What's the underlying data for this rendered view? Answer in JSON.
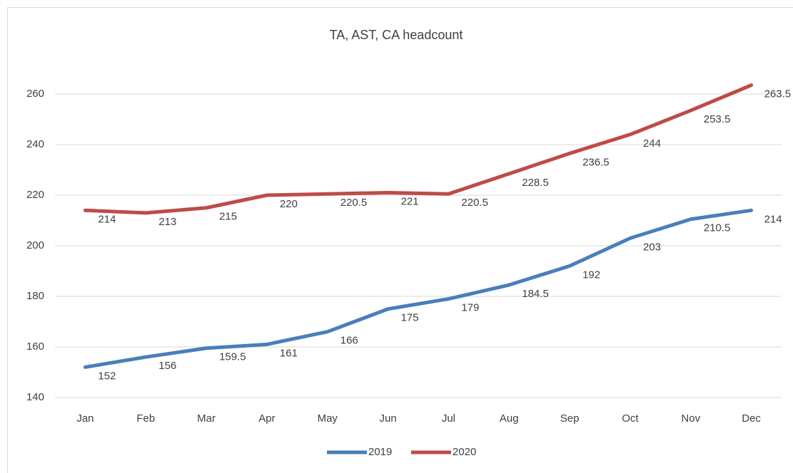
{
  "chart_data": {
    "type": "line",
    "title": "TA, AST, CA headcount",
    "categories": [
      "Jan",
      "Feb",
      "Mar",
      "Apr",
      "May",
      "Jun",
      "Jul",
      "Aug",
      "Sep",
      "Oct",
      "Nov",
      "Dec"
    ],
    "series": [
      {
        "name": "2019",
        "color": "#4a7ebb",
        "values": [
          152,
          156,
          159.5,
          161,
          166,
          175,
          179,
          184.5,
          192,
          203,
          210.5,
          214
        ]
      },
      {
        "name": "2020",
        "color": "#be4b48",
        "values": [
          214,
          213,
          215,
          220,
          220.5,
          221,
          220.5,
          228.5,
          236.5,
          244,
          253.5,
          263.5
        ]
      }
    ],
    "ylim": [
      140,
      270
    ],
    "yticks": [
      140,
      160,
      180,
      200,
      220,
      240,
      260
    ],
    "grid": true,
    "legend": "bottom"
  }
}
